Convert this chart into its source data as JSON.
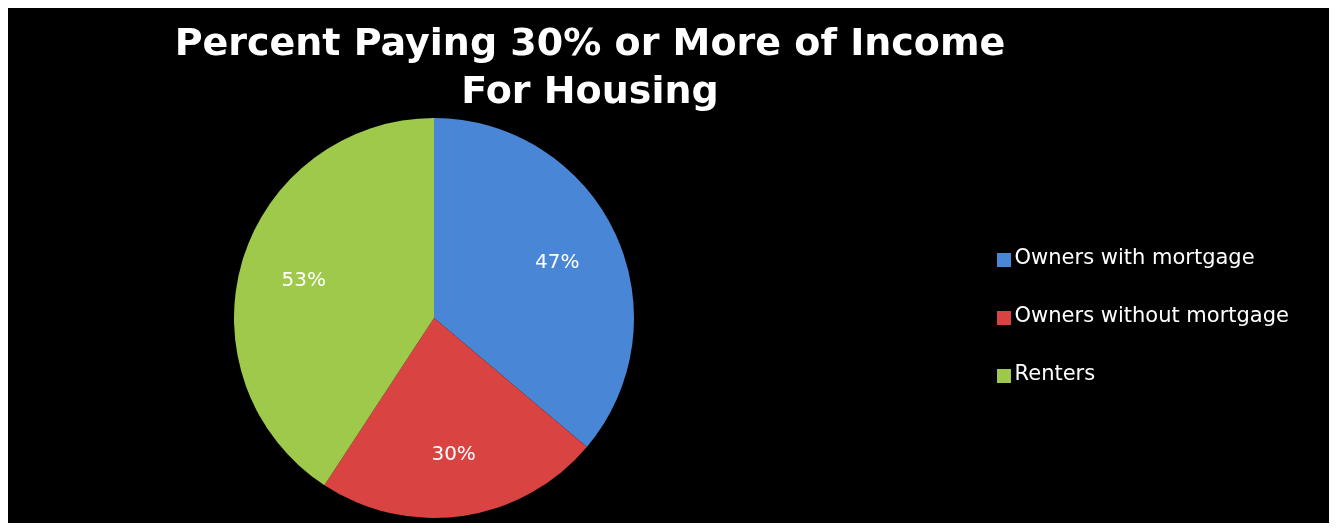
{
  "chart_data": {
    "type": "pie",
    "title": "Percent Paying 30% or More of Income For Housing",
    "categories": [
      "Owners with mortgage",
      "Owners without mortgage",
      "Renters"
    ],
    "values": [
      47,
      30,
      53
    ],
    "colors": [
      "#4a86d6",
      "#d94442",
      "#9ec94a"
    ],
    "value_labels": [
      "47%",
      "30%",
      "53%"
    ],
    "legend": "right"
  }
}
